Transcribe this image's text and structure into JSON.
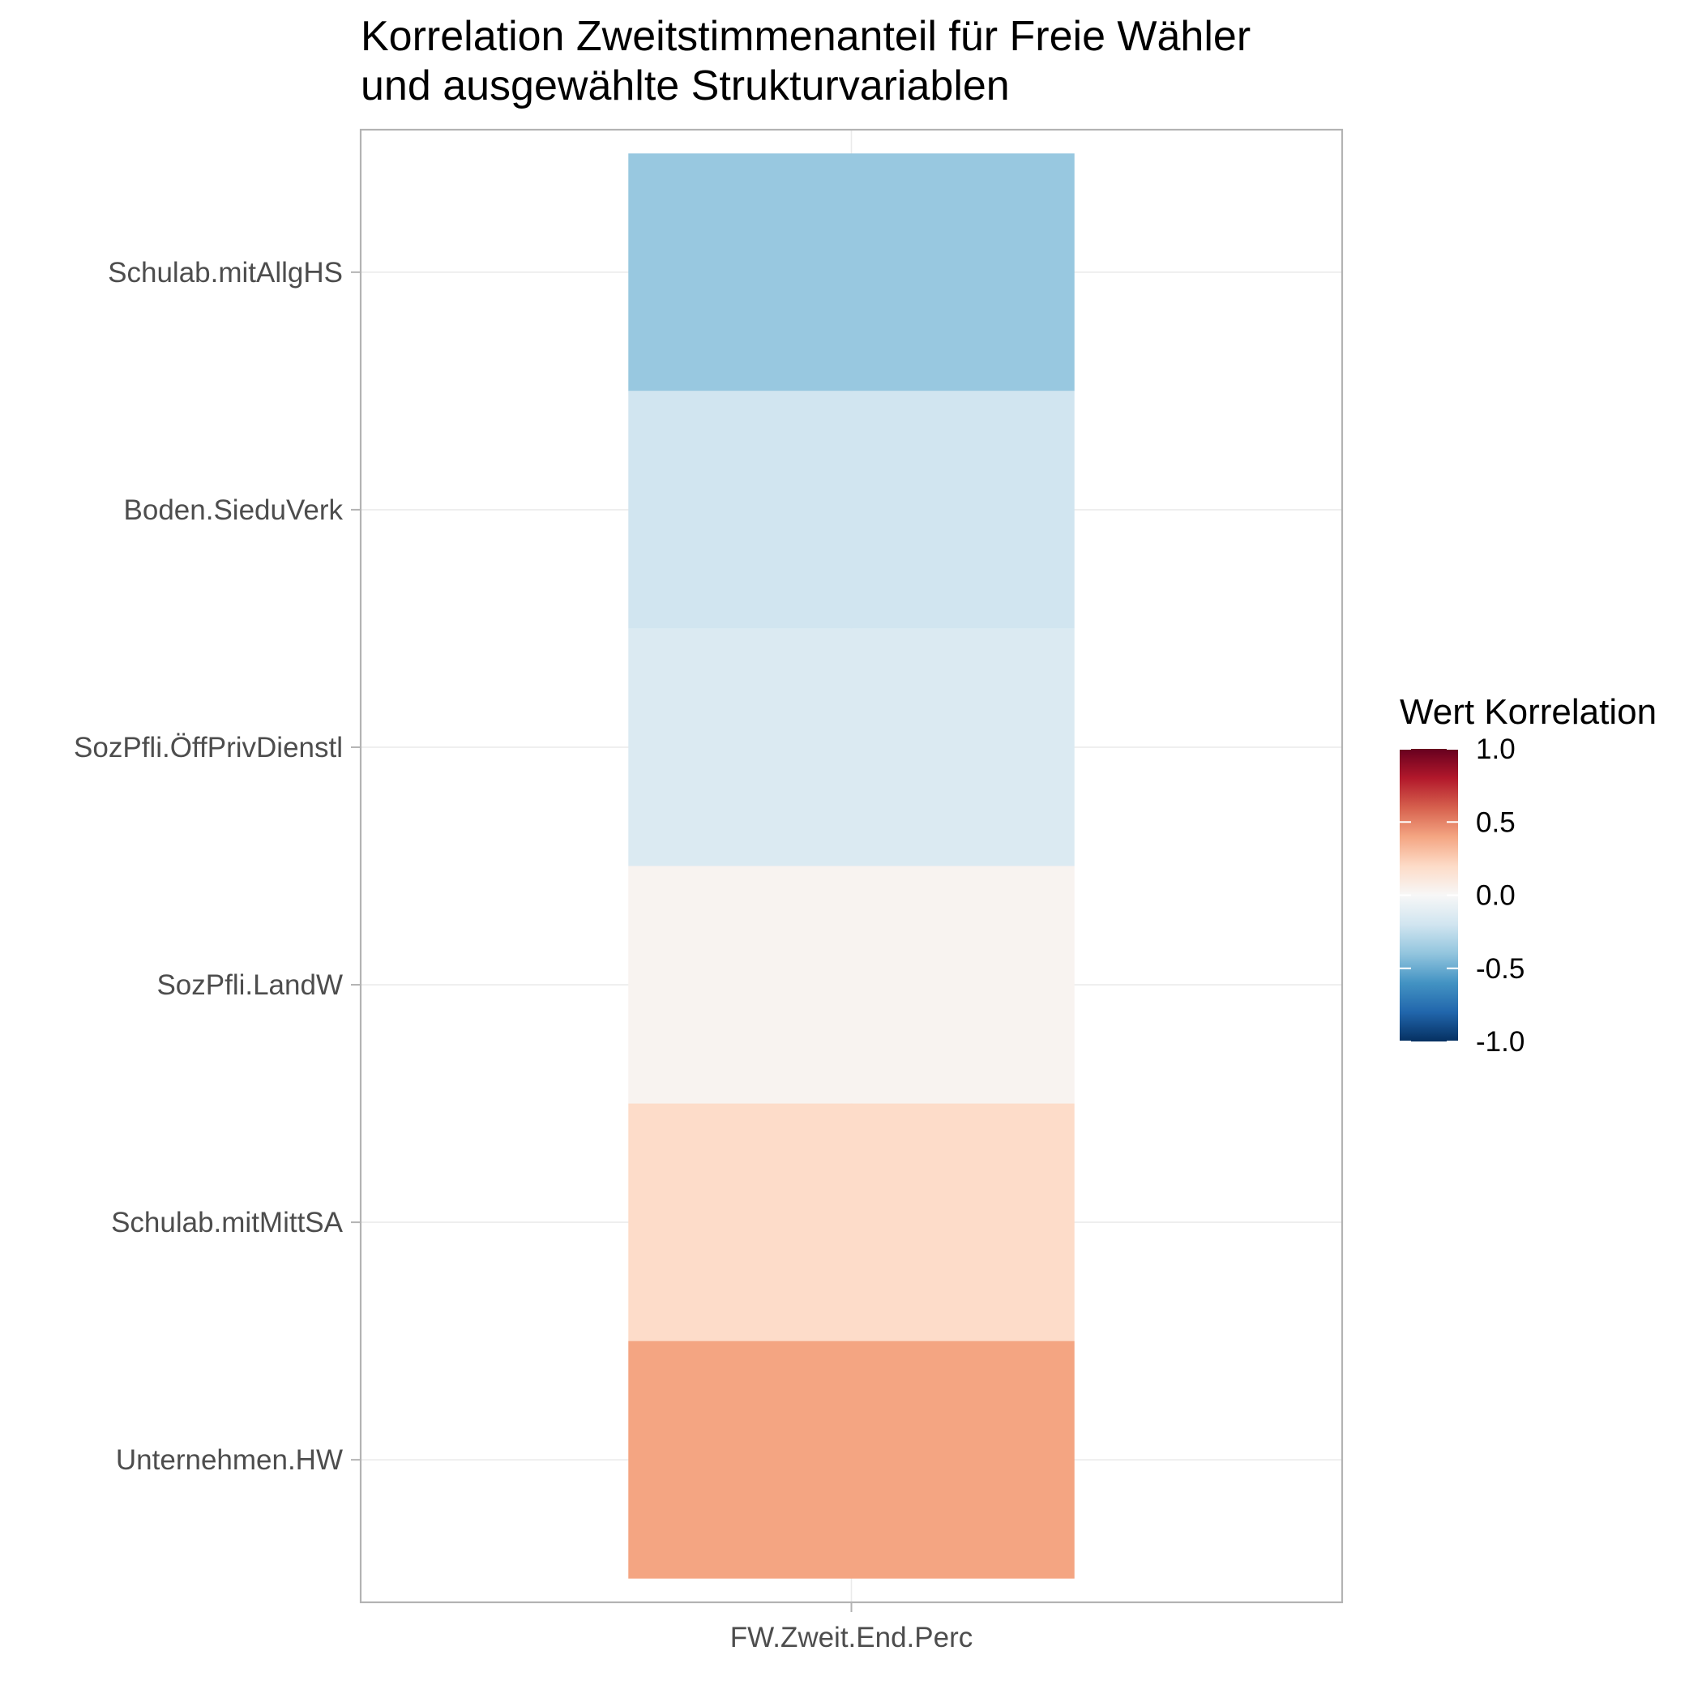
{
  "chart_data": {
    "type": "heatmap",
    "title": [
      "Korrelation Zweitstimmenanteil für Freie Wähler",
      "und ausgewählte Strukturvariablen"
    ],
    "x_categories": [
      "FW.Zweit.End.Perc"
    ],
    "y_categories": [
      "Schulab.mitAllgHS",
      "Boden.SieduVerk",
      "SozPfli.ÖffPrivDienstl",
      "SozPfli.LandW",
      "Schulab.mitMittSA",
      "Unternehmen.HW"
    ],
    "values": [
      -0.38,
      -0.2,
      -0.15,
      0.03,
      0.19,
      0.4
    ],
    "legend": {
      "title": "Wert Korrelation",
      "ticks": [
        1.0,
        0.5,
        0.0,
        -0.5,
        -1.0
      ],
      "tick_labels": [
        "1.0",
        "0.5",
        "0.0",
        "-0.5",
        "-1.0"
      ],
      "range": [
        -1,
        1
      ],
      "placement": "right"
    },
    "color_scale": {
      "name": "RdBu",
      "stops": [
        "#053061",
        "#2166ac",
        "#4393c3",
        "#92c5de",
        "#d1e5f0",
        "#f7f7f7",
        "#fddbc7",
        "#f4a582",
        "#d6604d",
        "#b2182b",
        "#67001f"
      ]
    },
    "grid": true
  }
}
